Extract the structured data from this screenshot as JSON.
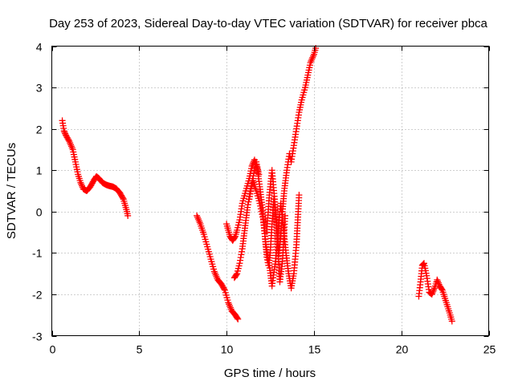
{
  "chart_data": {
    "type": "scatter",
    "title": "Day 253 of 2023, Sidereal Day-to-day VTEC variation (SDTVAR) for receiver pbca",
    "xlabel": "GPS time / hours",
    "ylabel": "SDTVAR / TECUs",
    "xlim": [
      0,
      25
    ],
    "ylim": [
      -3,
      4
    ],
    "xticks": [
      0,
      5,
      10,
      15,
      20,
      25
    ],
    "yticks": [
      -3,
      -2,
      -1,
      0,
      1,
      2,
      3,
      4
    ],
    "grid": true,
    "marker": "+",
    "color": "#ff0000",
    "segments": [
      {
        "x": [
          0.6,
          0.7,
          0.8,
          1.0,
          1.2,
          1.35,
          1.5,
          1.65,
          1.8,
          2.0,
          2.2,
          2.4,
          2.55,
          2.7,
          2.9,
          3.1,
          3.3,
          3.5,
          3.7,
          3.9,
          4.1,
          4.2,
          4.3,
          4.35
        ],
        "y": [
          2.2,
          1.95,
          1.85,
          1.7,
          1.5,
          1.2,
          0.9,
          0.7,
          0.55,
          0.5,
          0.6,
          0.75,
          0.85,
          0.8,
          0.7,
          0.65,
          0.62,
          0.6,
          0.55,
          0.45,
          0.3,
          0.15,
          0.0,
          -0.1
        ]
      },
      {
        "x": [
          8.3,
          8.5,
          8.7,
          8.9,
          9.1,
          9.3,
          9.5,
          9.7,
          9.9,
          10.1,
          10.3,
          10.5,
          10.65
        ],
        "y": [
          -0.1,
          -0.3,
          -0.55,
          -0.85,
          -1.15,
          -1.45,
          -1.65,
          -1.75,
          -1.9,
          -2.2,
          -2.4,
          -2.5,
          -2.6
        ]
      },
      {
        "x": [
          10.0,
          10.1,
          10.2,
          10.35,
          10.5,
          10.6,
          10.75,
          10.9,
          11.1,
          11.3,
          11.45,
          11.6,
          11.75,
          11.9,
          12.05,
          12.2,
          12.3,
          12.4,
          12.5,
          12.6,
          12.7,
          12.85,
          13.0,
          13.1,
          13.2,
          13.3,
          13.45,
          13.6,
          13.7,
          13.85,
          14.0,
          14.15,
          14.3,
          14.5,
          14.65,
          14.8,
          15.0,
          15.1
        ],
        "y": [
          -0.3,
          -0.45,
          -0.6,
          -0.7,
          -0.6,
          -0.45,
          -0.2,
          0.2,
          0.5,
          0.8,
          1.1,
          1.25,
          1.05,
          0.6,
          0.1,
          -0.6,
          -1.1,
          -1.3,
          -1.0,
          -0.3,
          0.3,
          -0.2,
          -1.0,
          -0.6,
          0.0,
          0.5,
          1.0,
          1.4,
          1.2,
          1.6,
          2.0,
          2.4,
          2.7,
          3.0,
          3.3,
          3.6,
          3.8,
          3.95
        ]
      },
      {
        "x": [
          10.45,
          10.6,
          10.75,
          10.9,
          11.05,
          11.2,
          11.35,
          11.5,
          11.7,
          11.9,
          12.1,
          12.25,
          12.45,
          12.6,
          12.8,
          12.95,
          13.1,
          13.25,
          13.4,
          13.55,
          13.7,
          13.85,
          14.0,
          14.15
        ],
        "y": [
          -1.6,
          -1.5,
          -1.25,
          -0.9,
          -0.4,
          0.1,
          0.5,
          0.75,
          0.5,
          0.2,
          -0.2,
          -0.8,
          -1.3,
          -1.8,
          -1.2,
          -0.5,
          0.2,
          -0.4,
          -1.0,
          -1.5,
          -1.85,
          -1.5,
          -0.8,
          0.4
        ]
      },
      {
        "x": [
          11.3,
          11.5,
          11.7,
          11.85
        ],
        "y": [
          0.3,
          0.8,
          1.2,
          0.9
        ]
      },
      {
        "x": [
          12.3,
          12.45,
          12.6,
          12.75,
          12.9,
          13.05,
          13.2,
          13.35
        ],
        "y": [
          -0.5,
          0.4,
          1.0,
          0.3,
          -0.6,
          -1.7,
          -1.2,
          -0.1
        ]
      },
      {
        "x": [
          21.0,
          21.1,
          21.2,
          21.3,
          21.45,
          21.6,
          21.75,
          21.9,
          22.05,
          22.2,
          22.35,
          22.5,
          22.65,
          22.8,
          22.9
        ],
        "y": [
          -2.05,
          -1.7,
          -1.3,
          -1.25,
          -1.55,
          -1.95,
          -2.0,
          -1.85,
          -1.65,
          -1.8,
          -1.9,
          -2.1,
          -2.3,
          -2.5,
          -2.65
        ]
      }
    ]
  }
}
